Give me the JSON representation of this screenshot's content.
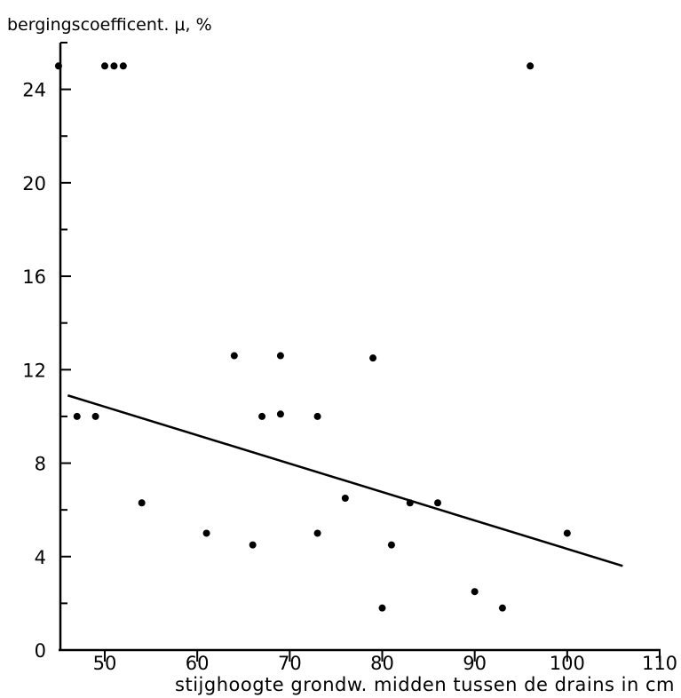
{
  "chart_data": {
    "type": "scatter",
    "title": "",
    "ylabel": "bergingscoefficent. μ, %",
    "xlabel": "stijghoogte grondw. midden tussen de drains  in cm",
    "xlim": [
      45,
      110
    ],
    "ylim": [
      0,
      26
    ],
    "x_ticks": [
      50,
      60,
      70,
      80,
      90,
      100,
      110
    ],
    "y_ticks": [
      0,
      4,
      8,
      12,
      16,
      20,
      24
    ],
    "grid": false,
    "legend": "none",
    "series": [
      {
        "points": [
          {
            "x": 45,
            "y": 25
          },
          {
            "x": 50,
            "y": 25
          },
          {
            "x": 51,
            "y": 25
          },
          {
            "x": 52,
            "y": 25
          },
          {
            "x": 96,
            "y": 25
          },
          {
            "x": 47,
            "y": 10
          },
          {
            "x": 49,
            "y": 10
          },
          {
            "x": 54,
            "y": 6.3
          },
          {
            "x": 61,
            "y": 5
          },
          {
            "x": 64,
            "y": 12.6
          },
          {
            "x": 66,
            "y": 4.5
          },
          {
            "x": 67,
            "y": 10
          },
          {
            "x": 69,
            "y": 10.1
          },
          {
            "x": 69,
            "y": 12.6
          },
          {
            "x": 73,
            "y": 10
          },
          {
            "x": 73,
            "y": 5
          },
          {
            "x": 76,
            "y": 6.5
          },
          {
            "x": 79,
            "y": 12.5
          },
          {
            "x": 80,
            "y": 1.8
          },
          {
            "x": 81,
            "y": 4.5
          },
          {
            "x": 83,
            "y": 6.3
          },
          {
            "x": 86,
            "y": 6.3
          },
          {
            "x": 90,
            "y": 2.5
          },
          {
            "x": 93,
            "y": 1.8
          },
          {
            "x": 100,
            "y": 5
          }
        ]
      }
    ],
    "trend_line": {
      "x": [
        46,
        106
      ],
      "y": [
        10.9,
        3.6
      ]
    }
  }
}
